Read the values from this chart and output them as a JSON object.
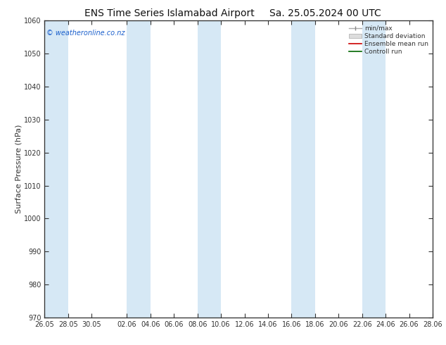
{
  "title_left": "ENS Time Series Islamabad Airport",
  "title_right": "Sa. 25.05.2024 00 UTC",
  "ylabel": "Surface Pressure (hPa)",
  "ylim": [
    970,
    1060
  ],
  "yticks": [
    970,
    980,
    990,
    1000,
    1010,
    1020,
    1030,
    1040,
    1050,
    1060
  ],
  "xtick_labels": [
    "26.05",
    "28.05",
    "30.05",
    "02.06",
    "04.06",
    "06.06",
    "08.06",
    "10.06",
    "12.06",
    "14.06",
    "16.06",
    "18.06",
    "20.06",
    "22.06",
    "24.06",
    "26.06",
    "28.06"
  ],
  "band_color": "#d6e8f5",
  "background_color": "#ffffff",
  "plot_bg_color": "#ffffff",
  "axis_color": "#333333",
  "title_fontsize": 10,
  "tick_fontsize": 7,
  "ylabel_fontsize": 8,
  "watermark_text": "© weatheronline.co.nz",
  "watermark_color": "#1a5fcc",
  "legend_items": [
    "min/max",
    "Standard deviation",
    "Ensemble mean run",
    "Controll run"
  ],
  "legend_line_colors": [
    "#aaaaaa",
    "#cccccc",
    "#cc0000",
    "#006600"
  ]
}
